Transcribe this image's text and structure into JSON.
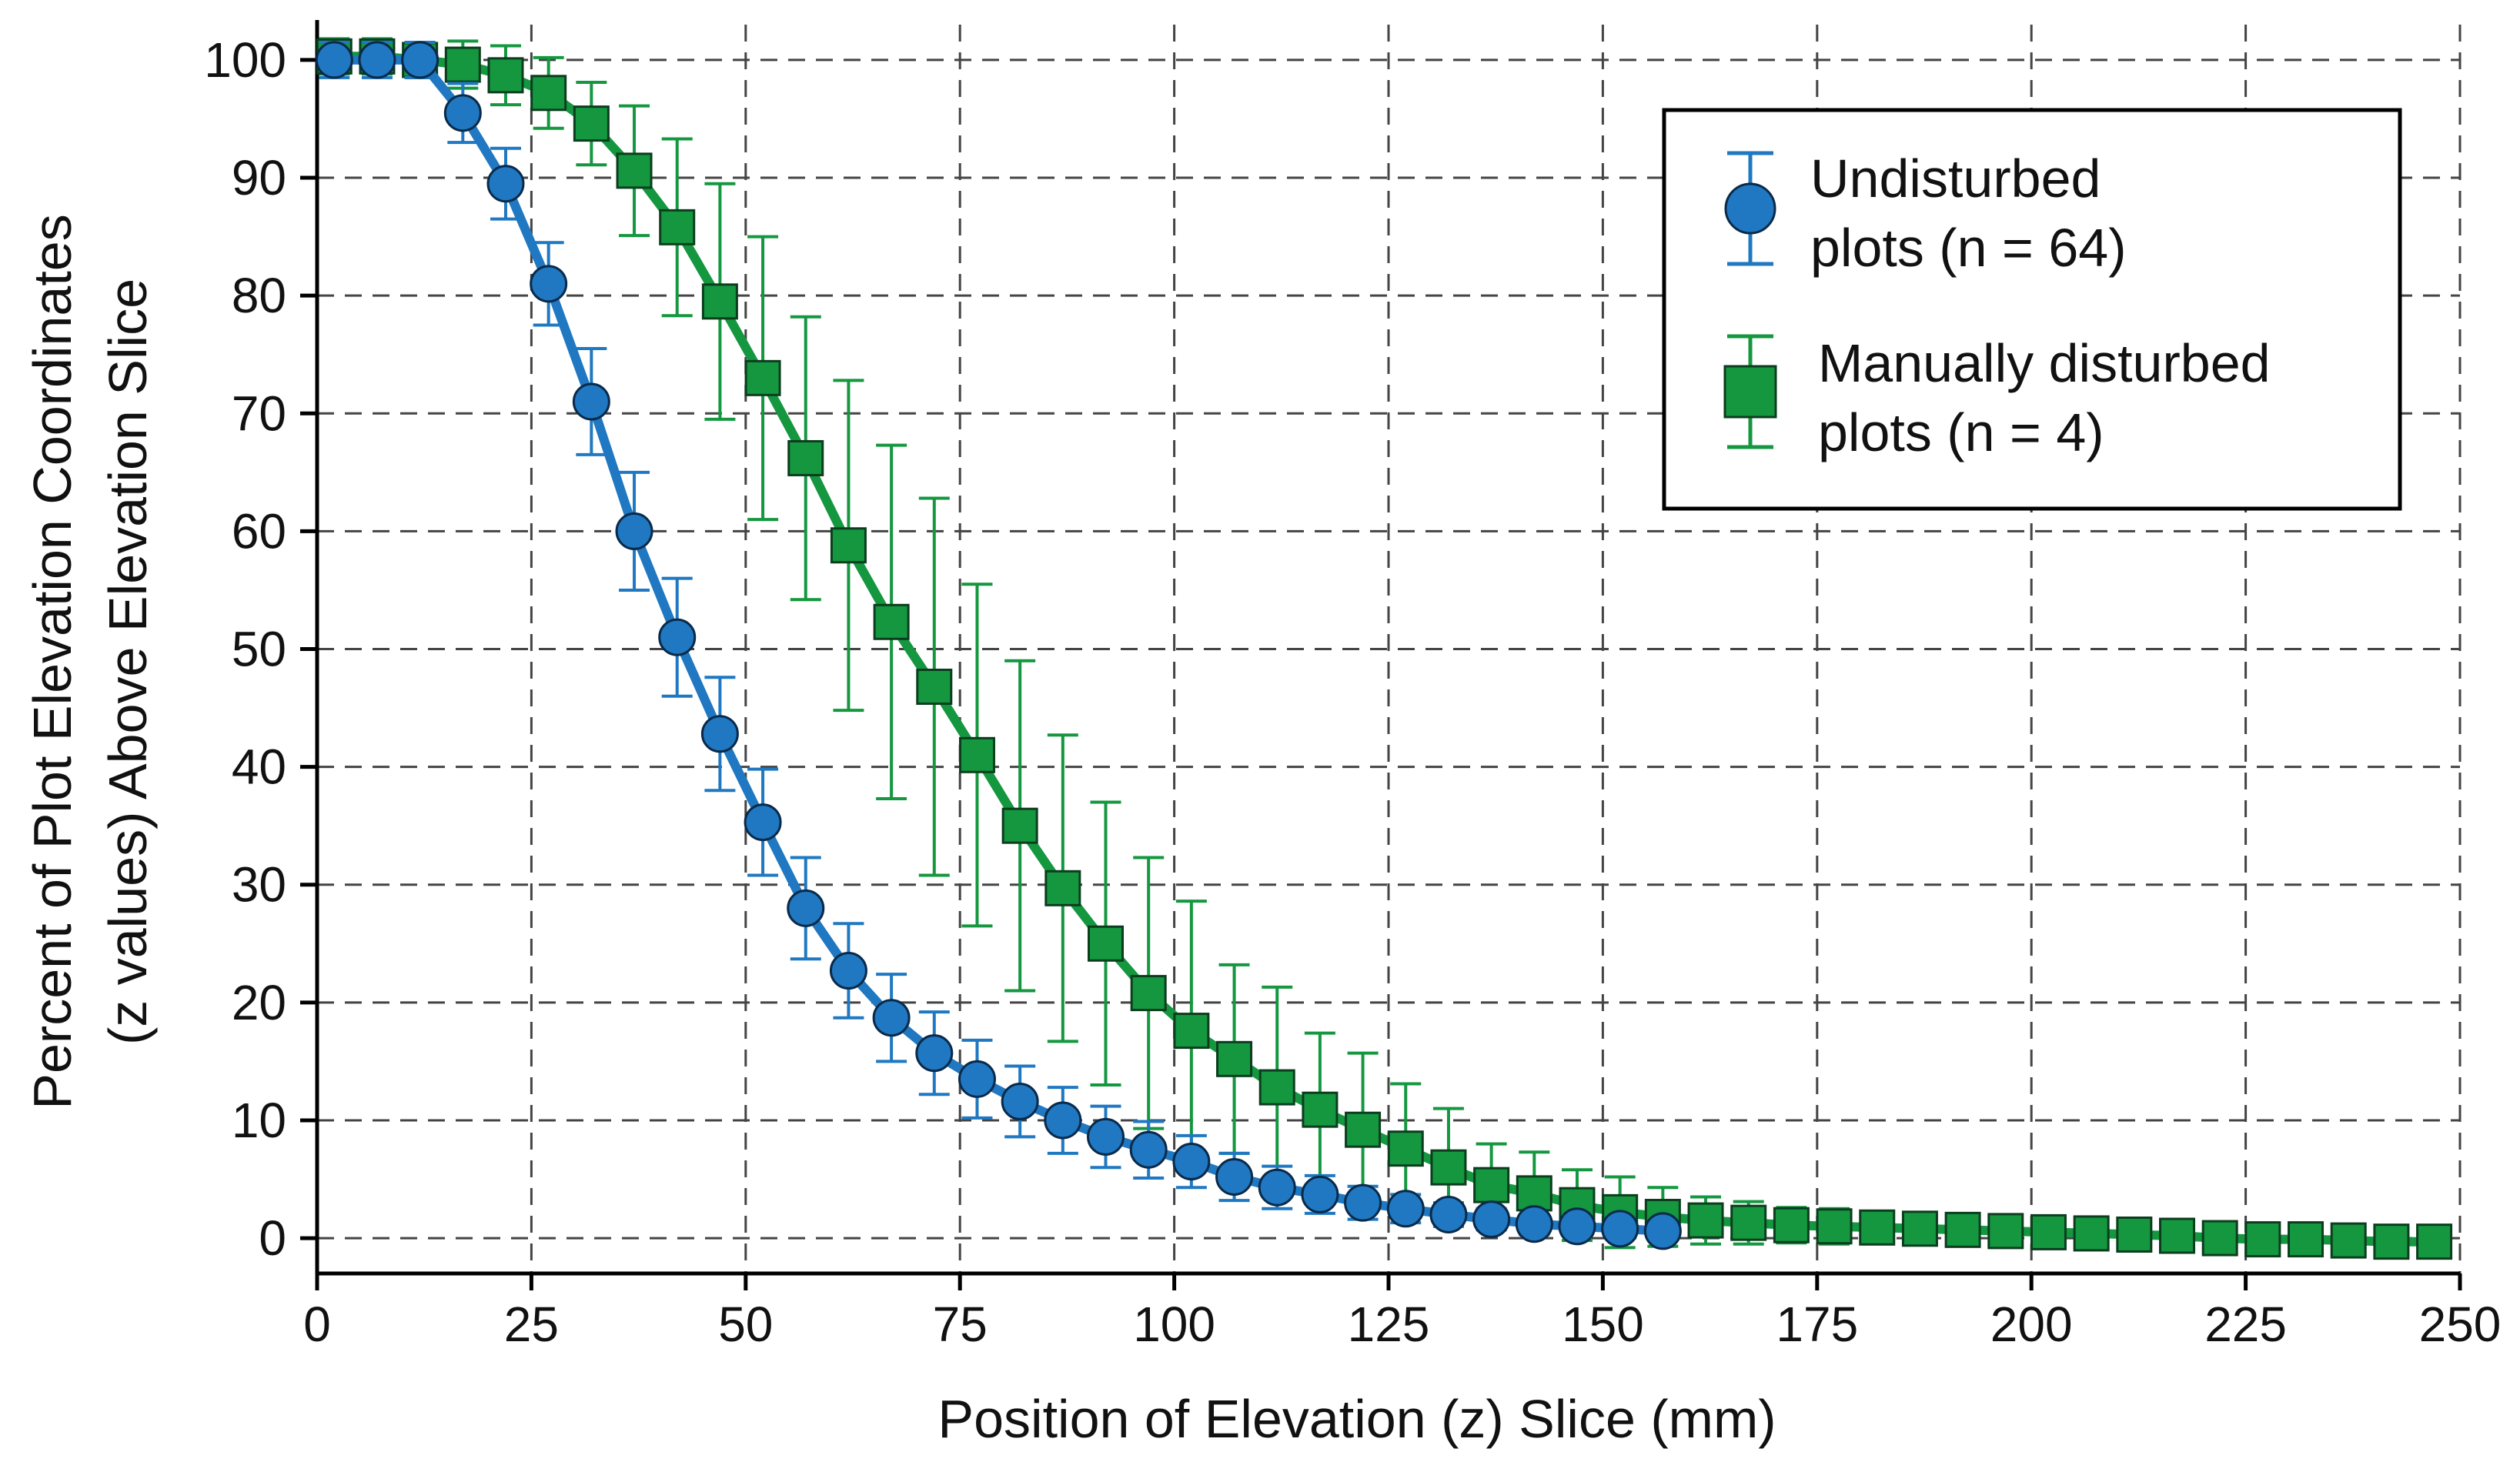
{
  "chart_data": {
    "type": "scatter",
    "title": "",
    "xlabel": "Position of Elevation (z) Slice (mm)",
    "ylabel_line1": "Percent of Plot Elevation Coordinates",
    "ylabel_line2": "(z values) Above Elevation Slice",
    "xlim": [
      0,
      250
    ],
    "ylim": [
      -3,
      103
    ],
    "xticks": [
      0,
      25,
      50,
      75,
      100,
      125,
      150,
      175,
      200,
      225,
      250
    ],
    "yticks": [
      0,
      10,
      20,
      30,
      40,
      50,
      60,
      70,
      80,
      90,
      100
    ],
    "grid": true,
    "legend_position": "top-right",
    "series": [
      {
        "name_line1": "Undisturbed",
        "name_line2": "plots (n = 64)",
        "marker": "circle",
        "color": "#1f78c1",
        "edge_color": "#0a2a4a",
        "points": [
          [
            2,
            100,
            1.5
          ],
          [
            7,
            100,
            1.5
          ],
          [
            12,
            100,
            1.5
          ],
          [
            17,
            95.5,
            2.5
          ],
          [
            22,
            89.5,
            3
          ],
          [
            27,
            81,
            3.5
          ],
          [
            32,
            71,
            4.5
          ],
          [
            37,
            60,
            5
          ],
          [
            42,
            51,
            5
          ],
          [
            47,
            42.8,
            4.8
          ],
          [
            52,
            35.3,
            4.5
          ],
          [
            57,
            28,
            4.3
          ],
          [
            62,
            22.7,
            4
          ],
          [
            67,
            18.7,
            3.7
          ],
          [
            72,
            15.7,
            3.5
          ],
          [
            77,
            13.5,
            3.3
          ],
          [
            82,
            11.6,
            3
          ],
          [
            87,
            10,
            2.8
          ],
          [
            92,
            8.6,
            2.6
          ],
          [
            97,
            7.5,
            2.4
          ],
          [
            102,
            6.5,
            2.2
          ],
          [
            107,
            5.2,
            2
          ],
          [
            112,
            4.3,
            1.8
          ],
          [
            117,
            3.7,
            1.6
          ],
          [
            122,
            3,
            1.4
          ],
          [
            127,
            2.5,
            1.2
          ],
          [
            132,
            2,
            1
          ],
          [
            137,
            1.6,
            0.9
          ],
          [
            142,
            1.2,
            0.8
          ],
          [
            147,
            1,
            0.7
          ],
          [
            152,
            0.8,
            0.6
          ],
          [
            157,
            0.6,
            0.5
          ]
        ]
      },
      {
        "name_line1": "Manually disturbed",
        "name_line2": "plots (n = 4)",
        "marker": "square",
        "color": "#14973f",
        "edge_color": "#0b3d1e",
        "points": [
          [
            2,
            100.3,
            1.5
          ],
          [
            7,
            100.3,
            1.5
          ],
          [
            12,
            100,
            1.5
          ],
          [
            17,
            99.6,
            2
          ],
          [
            22,
            98.7,
            2.5
          ],
          [
            27,
            97.2,
            3
          ],
          [
            32,
            94.6,
            3.5
          ],
          [
            37,
            90.6,
            5.5
          ],
          [
            42,
            85.8,
            7.5
          ],
          [
            47,
            79.5,
            10
          ],
          [
            52,
            73,
            12
          ],
          [
            57,
            66.2,
            12
          ],
          [
            62,
            58.8,
            14
          ],
          [
            67,
            52.3,
            15
          ],
          [
            72,
            46.8,
            16
          ],
          [
            77,
            41,
            14.5
          ],
          [
            82,
            35,
            14
          ],
          [
            87,
            29.7,
            13
          ],
          [
            92,
            25,
            12
          ],
          [
            97,
            20.8,
            11.5
          ],
          [
            102,
            17.6,
            11
          ],
          [
            107,
            15.2,
            8
          ],
          [
            112,
            12.8,
            8.5
          ],
          [
            117,
            10.9,
            6.5
          ],
          [
            122,
            9.2,
            6.5
          ],
          [
            127,
            7.6,
            5.5
          ],
          [
            132,
            6,
            5
          ],
          [
            137,
            4.5,
            3.5
          ],
          [
            142,
            3.8,
            3.5
          ],
          [
            147,
            2.8,
            3
          ],
          [
            152,
            2.2,
            3
          ],
          [
            157,
            1.8,
            2.5
          ],
          [
            162,
            1.5,
            2
          ],
          [
            167,
            1.3,
            1.8
          ],
          [
            172,
            1.1,
            1.5
          ],
          [
            177,
            1,
            1.5
          ],
          [
            182,
            0.9,
            1.3
          ],
          [
            187,
            0.8,
            1.2
          ],
          [
            192,
            0.7,
            1.1
          ],
          [
            197,
            0.6,
            1
          ],
          [
            202,
            0.5,
            1
          ],
          [
            207,
            0.4,
            0.9
          ],
          [
            212,
            0.3,
            0.8
          ],
          [
            217,
            0.2,
            0.7
          ],
          [
            222,
            0,
            0.6
          ],
          [
            227,
            -0.1,
            0.6
          ],
          [
            232,
            -0.1,
            0.5
          ],
          [
            237,
            -0.2,
            0.5
          ],
          [
            242,
            -0.3,
            0.4
          ],
          [
            247,
            -0.3,
            0.4
          ]
        ]
      }
    ]
  }
}
